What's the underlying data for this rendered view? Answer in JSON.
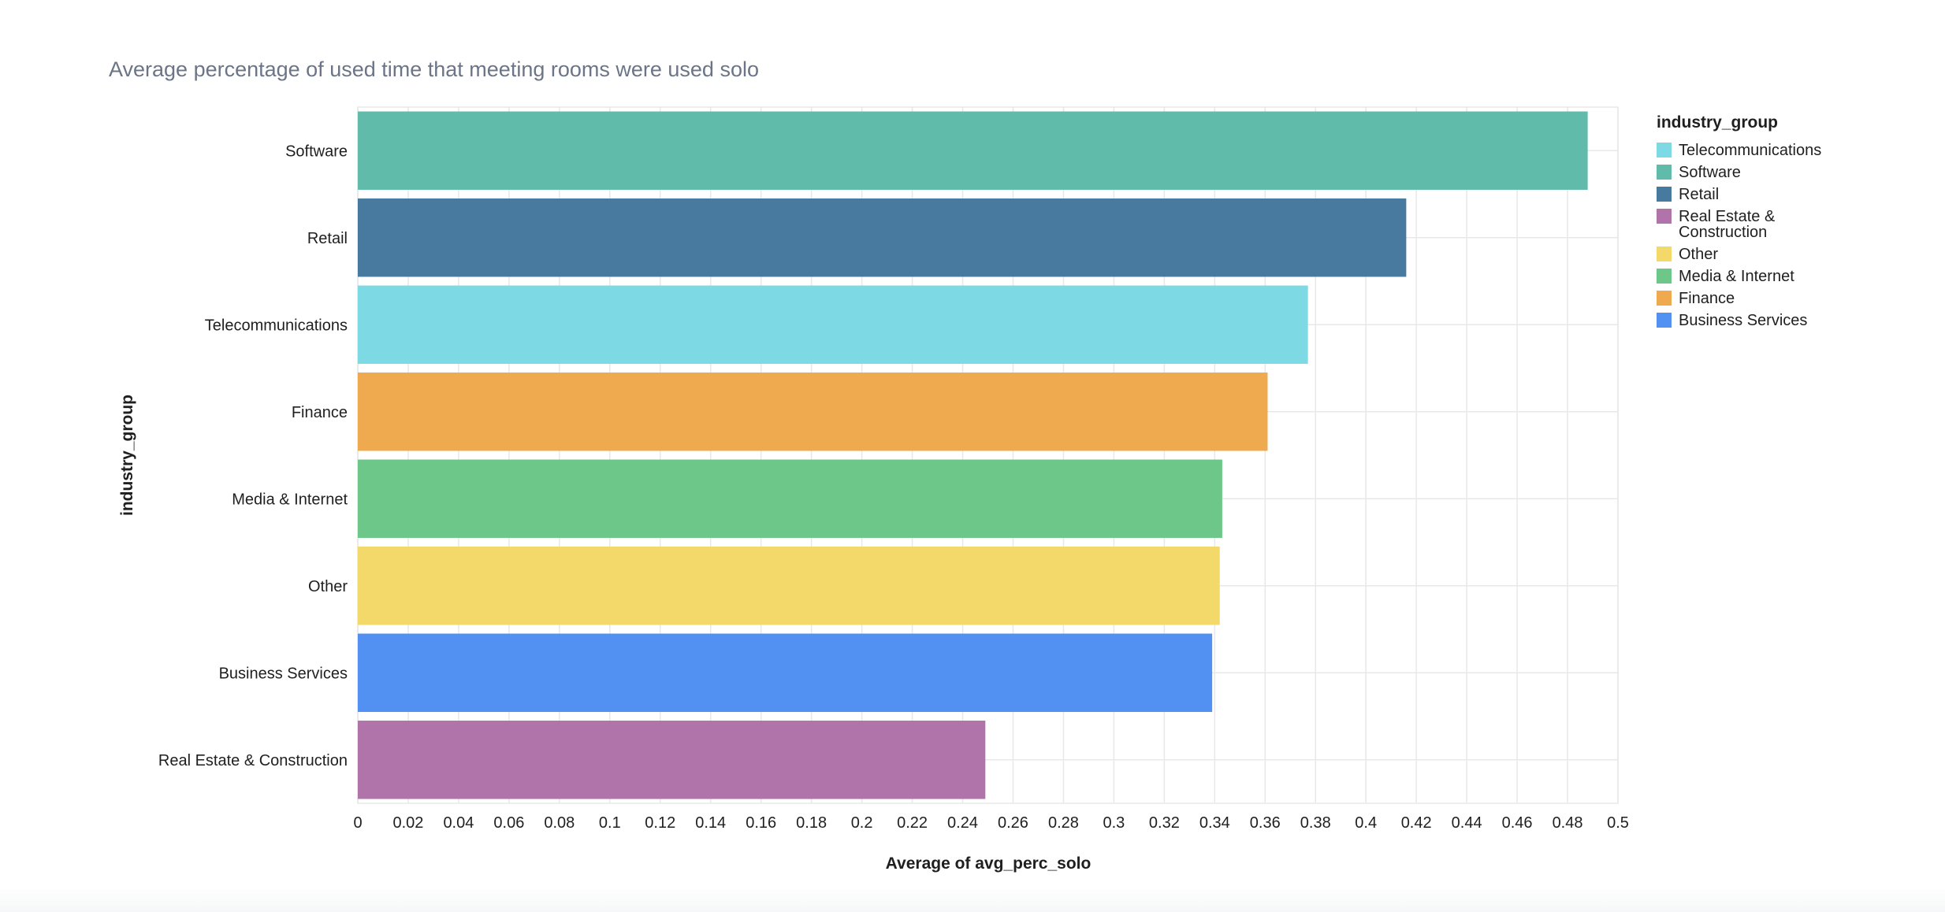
{
  "chart_data": {
    "type": "bar",
    "orientation": "horizontal",
    "title": "Average percentage of used time that meeting rooms were used solo",
    "xlabel": "Average of avg_perc_solo",
    "ylabel": "industry_group",
    "xlim": [
      0,
      0.5
    ],
    "x_ticks": [
      "0",
      "0.02",
      "0.04",
      "0.06",
      "0.08",
      "0.1",
      "0.12",
      "0.14",
      "0.16",
      "0.18",
      "0.2",
      "0.22",
      "0.24",
      "0.26",
      "0.28",
      "0.3",
      "0.32",
      "0.34",
      "0.36",
      "0.38",
      "0.4",
      "0.42",
      "0.44",
      "0.46",
      "0.48",
      "0.5"
    ],
    "grid": true,
    "categories": [
      "Software",
      "Retail",
      "Telecommunications",
      "Finance",
      "Media & Internet",
      "Other",
      "Business Services",
      "Real Estate & Construction"
    ],
    "values": [
      0.488,
      0.416,
      0.377,
      0.361,
      0.343,
      0.342,
      0.339,
      0.249
    ],
    "colors": [
      "#60bbab",
      "#48799f",
      "#7ddae5",
      "#efa94f",
      "#6dc788",
      "#f3d86a",
      "#5290f2",
      "#b074ab"
    ],
    "legend": {
      "title": "industry_group",
      "placement": "right",
      "entries": [
        {
          "label": "Telecommunications",
          "color": "#7ddae5"
        },
        {
          "label": "Software",
          "color": "#60bbab"
        },
        {
          "label": "Retail",
          "color": "#48799f"
        },
        {
          "label": "Real Estate & Construction",
          "color": "#b074ab"
        },
        {
          "label": "Other",
          "color": "#f3d86a"
        },
        {
          "label": "Media & Internet",
          "color": "#6dc788"
        },
        {
          "label": "Finance",
          "color": "#efa94f"
        },
        {
          "label": "Business Services",
          "color": "#5290f2"
        }
      ]
    },
    "title_color": "#6b7587",
    "text_color": "#1f1f1f",
    "grid_color": "#e8e8e8"
  }
}
